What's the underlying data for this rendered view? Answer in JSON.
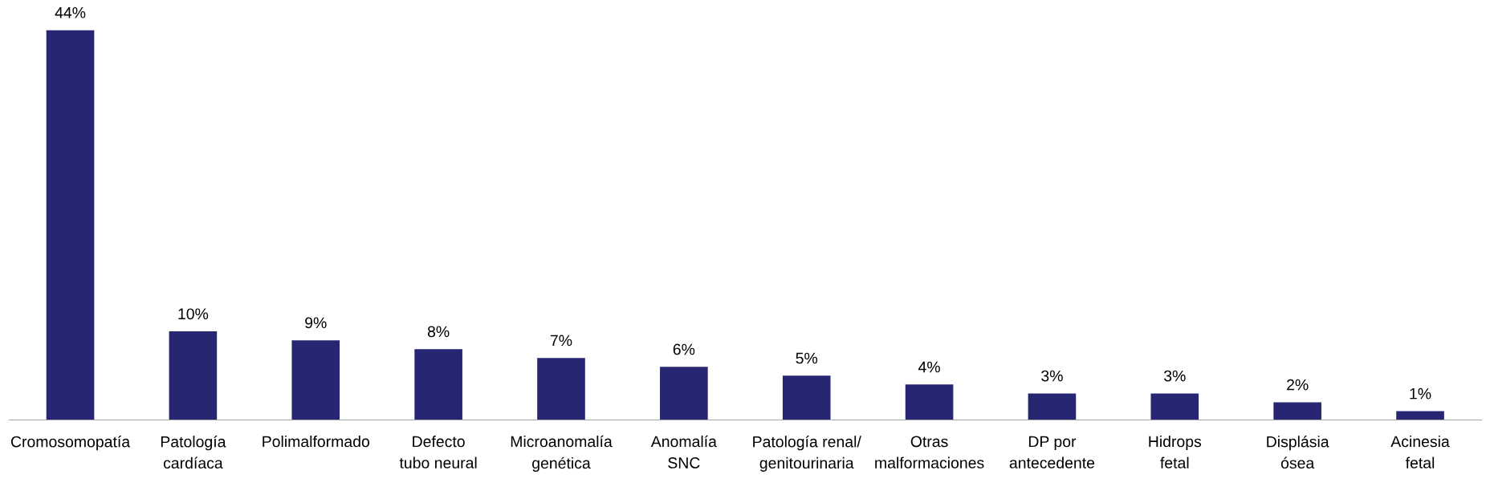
{
  "chart_data": {
    "type": "bar",
    "categories": [
      "Cromosomopatía",
      "Patología\ncardíaca",
      "Polimalformado",
      "Defecto\ntubo neural",
      "Microanomalía\ngenética",
      "Anomalía\nSNC",
      "Patología renal/\ngenitourinaria",
      "Otras\nmalformaciones",
      "DP por\nantecedente",
      "Hidrops\nfetal",
      "Displásia\nósea",
      "Acinesia\nfetal"
    ],
    "values": [
      44,
      10,
      9,
      8,
      7,
      6,
      5,
      4,
      3,
      3,
      2,
      1
    ],
    "value_labels": [
      "44%",
      "10%",
      "9%",
      "8%",
      "7%",
      "6%",
      "5%",
      "4%",
      "3%",
      "3%",
      "2%",
      "1%"
    ],
    "color": "#262672",
    "grid": false,
    "legend": false
  }
}
